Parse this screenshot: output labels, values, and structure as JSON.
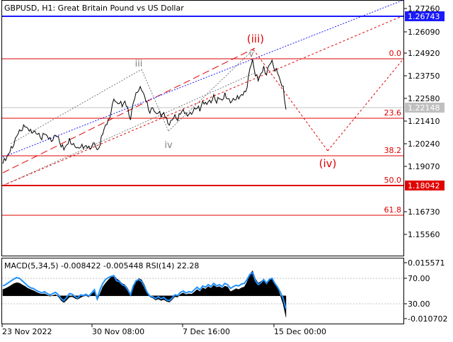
{
  "main_chart": {
    "symbol": "GBPUSD",
    "timeframe": "H1",
    "description": "Great Britain Pound vs US Dollar",
    "header_text": "GBPUSD, H1:  Great Britain Pound vs US Dollar",
    "price_axis": [
      "1.27260",
      "1.26090",
      "1.24920",
      "1.23750",
      "1.22580",
      "1.21410",
      "1.20240",
      "1.19070",
      "1.16730",
      "1.15560"
    ],
    "highlight_labels": [
      {
        "text": "1.26743",
        "color": "#1a1aff"
      },
      {
        "text": "1.22148",
        "color": "#c0c0c0"
      },
      {
        "text": "1.18042",
        "color": "#e00000"
      }
    ],
    "fib_levels": [
      "0.0",
      "23.6",
      "38.2",
      "50.0",
      "61.8"
    ],
    "wave_labels": {
      "iii_small": "iii",
      "iv_small": "iv",
      "v_small": "v",
      "iii_big": "(iii)",
      "iv_big": "(iv)"
    }
  },
  "indicator": {
    "title": "MACD(5,34,5) -0.008422 -0.005448 RSI(14) 22.28",
    "axis": [
      "0.015571",
      "70.00",
      "30.00",
      "-0.010702"
    ]
  },
  "time_axis": [
    "23 Nov 2022",
    "30 Nov 08:00",
    "7 Dec 16:00",
    "15 Dec 00:00"
  ],
  "colors": {
    "price_line": "#000000",
    "fib": "#e00000",
    "resistance": "#1a1aff",
    "macd": "#000000",
    "rsi": "#1e90ff",
    "wave_big": "#e00000",
    "wave_small": "#808080"
  },
  "chart_data": {
    "type": "line",
    "title": "GBPUSD, H1:  Great Britain Pound vs US Dollar",
    "xlabel": "",
    "ylabel": "",
    "ylim": [
      1.1435,
      1.278
    ],
    "x_ticks": [
      "23 Nov 2022",
      "30 Nov 08:00",
      "7 Dec 16:00",
      "15 Dec 00:00"
    ],
    "series": [
      {
        "name": "",
        "values": [
          1.1935,
          1.1942,
          1.1968,
          1.1998,
          1.203,
          1.2065,
          1.209,
          1.211,
          1.2118,
          1.2102,
          1.2088,
          1.2096,
          1.2078,
          1.2072,
          1.206,
          1.208,
          1.2062,
          1.2045,
          1.2052,
          1.207,
          1.2055,
          1.2022,
          1.1998,
          1.2015,
          1.2042,
          1.203,
          1.201,
          1.1998,
          1.202,
          1.2005,
          1.2012,
          1.2,
          1.2015,
          1.203,
          1.1985,
          1.203,
          1.208,
          1.212,
          1.214,
          1.22,
          1.226,
          1.2235,
          1.225,
          1.2225,
          1.2245,
          1.2205,
          1.216,
          1.224,
          1.2285,
          1.232,
          1.231,
          1.2275,
          1.223,
          1.2195,
          1.2215,
          1.218,
          1.22,
          1.217,
          1.2185,
          1.215,
          1.2132,
          1.215,
          1.217,
          1.216,
          1.2185,
          1.22,
          1.2175,
          1.2188,
          1.218,
          1.2205,
          1.2225,
          1.22,
          1.2245,
          1.223,
          1.2255,
          1.224,
          1.2275,
          1.2252,
          1.2265,
          1.225,
          1.228,
          1.227,
          1.224,
          1.2255,
          1.227,
          1.2265,
          1.228,
          1.2288,
          1.233,
          1.242,
          1.246,
          1.2395,
          1.236,
          1.239,
          1.242,
          1.2395,
          1.244,
          1.2455,
          1.242,
          1.24,
          1.235,
          1.2315,
          1.2215
        ]
      }
    ]
  },
  "macd_data": [
    0.003,
    0.0035,
    0.0042,
    0.005,
    0.0058,
    0.0062,
    0.006,
    0.0052,
    0.0045,
    0.0036,
    0.003,
    0.0025,
    0.0018,
    0.0012,
    0.0008,
    0.001,
    0.0004,
    -0.0002,
    0.0002,
    0.0006,
    -0.0004,
    -0.0022,
    -0.0032,
    -0.002,
    -0.0006,
    -0.0004,
    -0.0012,
    -0.0016,
    -0.0008,
    -0.0002,
    0.0001,
    -0.0006,
    0.0008,
    0.002,
    -0.0022,
    0.001,
    0.0042,
    0.006,
    0.0075,
    0.0088,
    0.0098,
    0.008,
    0.0072,
    0.0058,
    0.0052,
    0.0035,
    0.001,
    0.004,
    0.0068,
    0.0082,
    0.0075,
    0.0052,
    0.002,
    -0.0005,
    -0.001,
    -0.002,
    -0.0015,
    -0.0022,
    -0.0018,
    -0.0026,
    -0.003,
    -0.0018,
    -0.0004,
    -0.0006,
    0.0008,
    0.0014,
    0.0006,
    0.001,
    0.0008,
    0.0018,
    0.003,
    0.002,
    0.0038,
    0.0032,
    0.0044,
    0.0036,
    0.005,
    0.004,
    0.0044,
    0.0036,
    0.0046,
    0.0042,
    0.002,
    0.0026,
    0.0034,
    0.003,
    0.0038,
    0.0042,
    0.0066,
    0.0102,
    0.0118,
    0.008,
    0.006,
    0.0068,
    0.0078,
    0.0064,
    0.008,
    0.0082,
    0.006,
    0.004,
    0.0,
    -0.004,
    -0.01
  ],
  "rsi_data": [
    58,
    60,
    63,
    66,
    69,
    71,
    70,
    66,
    62,
    58,
    55,
    54,
    51,
    49,
    47,
    49,
    46,
    44,
    46,
    48,
    44,
    38,
    35,
    40,
    46,
    45,
    41,
    39,
    44,
    43,
    45,
    42,
    47,
    52,
    38,
    52,
    62,
    68,
    71,
    73,
    74,
    66,
    65,
    60,
    58,
    52,
    44,
    58,
    66,
    68,
    65,
    57,
    48,
    42,
    41,
    38,
    41,
    38,
    40,
    36,
    35,
    39,
    44,
    43,
    48,
    50,
    47,
    49,
    48,
    52,
    56,
    52,
    58,
    56,
    60,
    57,
    62,
    58,
    60,
    57,
    62,
    60,
    54,
    57,
    59,
    58,
    61,
    62,
    68,
    76,
    79,
    66,
    60,
    63,
    68,
    62,
    68,
    70,
    62,
    56,
    48,
    38,
    22
  ]
}
